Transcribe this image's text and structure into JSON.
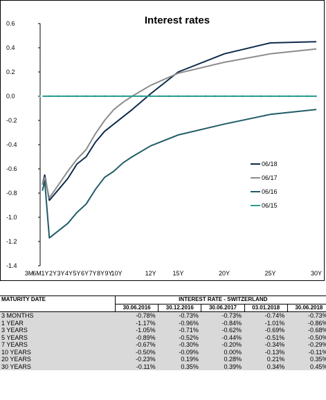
{
  "chart_data": {
    "type": "line",
    "title": "Interest rates",
    "x": [
      "3M",
      "6M",
      "1Y",
      "2Y",
      "3Y",
      "4Y",
      "5Y",
      "6Y",
      "7Y",
      "8Y",
      "9Y",
      "10Y",
      "12Y",
      "15Y",
      "20Y",
      "25Y",
      "30Y"
    ],
    "x_tick_labels": [
      "3M",
      "6M",
      "1Y",
      "2Y",
      "3Y",
      "4Y",
      "5Y",
      "6Y",
      "7Y",
      "8Y",
      "9Y",
      "10Y",
      "12Y",
      "15Y",
      "20Y",
      "25Y",
      "30Y"
    ],
    "x_years": [
      0.25,
      0.5,
      1,
      2,
      3,
      4,
      5,
      6,
      7,
      8,
      9,
      10,
      12,
      15,
      20,
      25,
      30
    ],
    "ylim": [
      -1.4,
      0.6
    ],
    "yticks": [
      0.6,
      0.4,
      0.2,
      0.0,
      -0.2,
      -0.4,
      -0.6,
      -0.8,
      -1.0,
      -1.2,
      -1.4
    ],
    "ytick_labels": [
      "0.6",
      "0.4",
      "0.2",
      "0.0",
      "-0.2",
      "-0.4",
      "-0.6",
      "-0.8",
      "-1.0",
      "-1.2",
      "-1.4"
    ],
    "legend_position": "right",
    "series": [
      {
        "name": "06/18",
        "color": "#0d2a4a",
        "values": [
          -0.73,
          -0.65,
          -0.86,
          -0.77,
          -0.68,
          -0.56,
          -0.5,
          -0.38,
          -0.29,
          -0.23,
          -0.17,
          -0.11,
          0.02,
          0.2,
          0.35,
          0.44,
          0.45
        ]
      },
      {
        "name": "06/17",
        "color": "#8c8c8c",
        "values": [
          -0.73,
          -0.67,
          -0.84,
          -0.73,
          -0.62,
          -0.52,
          -0.44,
          -0.31,
          -0.2,
          -0.11,
          -0.05,
          0.0,
          0.09,
          0.19,
          0.28,
          0.35,
          0.39
        ]
      },
      {
        "name": "06/16",
        "color": "#1f5c66",
        "values": [
          -0.78,
          -0.7,
          -1.17,
          -1.11,
          -1.05,
          -0.96,
          -0.89,
          -0.77,
          -0.67,
          -0.62,
          -0.55,
          -0.5,
          -0.41,
          -0.32,
          -0.23,
          -0.15,
          -0.11
        ]
      },
      {
        "name": "06/15",
        "color": "#2a9d8f",
        "values": [
          0.0,
          0.0,
          0.0,
          0.0,
          0.0,
          0.0,
          0.0,
          0.0,
          0.0,
          0.0,
          0.0,
          0.0,
          0.0,
          0.0,
          0.0,
          0.0,
          0.0
        ]
      }
    ]
  },
  "table": {
    "header_left": "MATURITY DATE",
    "header_group": "INTEREST RATE - SWITZERLAND",
    "dates": [
      "30.06.2016",
      "30.12.2016",
      "30.06.2017",
      "03.01.2018",
      "30.06.2018"
    ],
    "rows": [
      {
        "label": "3 MONTHS",
        "values": [
          "-0.78%",
          "-0.73%",
          "-0.73%",
          "-0.74%",
          "-0.73%"
        ]
      },
      {
        "label": "1 YEAR",
        "values": [
          "-1.17%",
          "-0.96%",
          "-0.84%",
          "-1.01%",
          "-0.86%"
        ]
      },
      {
        "label": "3 YEARS",
        "values": [
          "-1.05%",
          "-0.71%",
          "-0.62%",
          "-0.69%",
          "-0.68%"
        ]
      },
      {
        "label": "5 YEARS",
        "values": [
          "-0.89%",
          "-0.52%",
          "-0.44%",
          "-0.51%",
          "-0.50%"
        ]
      },
      {
        "label": "7 YEARS",
        "values": [
          "-0.67%",
          "-0.30%",
          "-0.20%",
          "-0.34%",
          "-0.29%"
        ]
      },
      {
        "label": "10 YEARS",
        "values": [
          "-0.50%",
          "-0.09%",
          "0.00%",
          "-0.13%",
          "-0.11%"
        ]
      },
      {
        "label": "20 YEARS",
        "values": [
          "-0.23%",
          "0.19%",
          "0.28%",
          "0.21%",
          "0.35%"
        ]
      },
      {
        "label": "30 YEARS",
        "values": [
          "-0.11%",
          "0.35%",
          "0.39%",
          "0.34%",
          "0.45%"
        ]
      }
    ]
  }
}
